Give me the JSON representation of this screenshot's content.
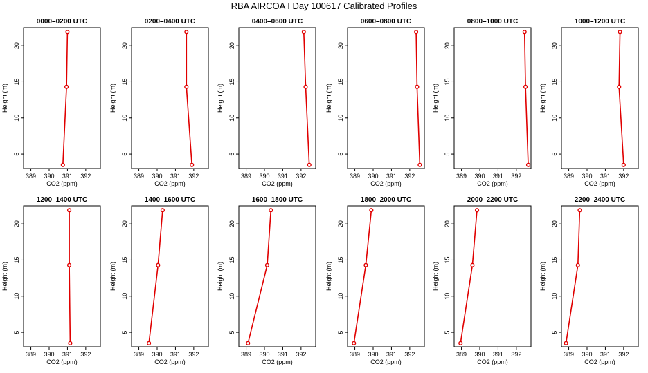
{
  "title": "RBA AIRCOA I  Day 100617  Calibrated Profiles",
  "colors": {
    "profile": "#e00000",
    "axis": "#000000"
  },
  "chart_data": [
    {
      "type": "line",
      "title": "0000–0200 UTC",
      "xlabel": "CO2 (ppm)",
      "ylabel": "Height (m)",
      "xlim": [
        388.6,
        392.8
      ],
      "ylim": [
        3,
        22.5
      ],
      "xticks": [
        389,
        390,
        391,
        392
      ],
      "yticks": [
        5,
        10,
        15,
        20
      ],
      "x": [
        390.75,
        390.95,
        391.0
      ],
      "y": [
        3.5,
        14.3,
        21.9
      ]
    },
    {
      "type": "line",
      "title": "0200–0400 UTC",
      "xlabel": "CO2 (ppm)",
      "ylabel": "Height (m)",
      "xlim": [
        388.6,
        392.8
      ],
      "ylim": [
        3,
        22.5
      ],
      "xticks": [
        389,
        390,
        391,
        392
      ],
      "yticks": [
        5,
        10,
        15,
        20
      ],
      "x": [
        391.9,
        391.6,
        391.6
      ],
      "y": [
        3.5,
        14.3,
        21.9
      ]
    },
    {
      "type": "line",
      "title": "0400–0600 UTC",
      "xlabel": "CO2 (ppm)",
      "ylabel": "Height (m)",
      "xlim": [
        388.6,
        392.8
      ],
      "ylim": [
        3,
        22.5
      ],
      "xticks": [
        389,
        390,
        391,
        392
      ],
      "yticks": [
        5,
        10,
        15,
        20
      ],
      "x": [
        392.45,
        392.25,
        392.15
      ],
      "y": [
        3.5,
        14.3,
        21.9
      ]
    },
    {
      "type": "line",
      "title": "0600–0800 UTC",
      "xlabel": "CO2 (ppm)",
      "ylabel": "Height (m)",
      "xlim": [
        388.6,
        392.8
      ],
      "ylim": [
        3,
        22.5
      ],
      "xticks": [
        389,
        390,
        391,
        392
      ],
      "yticks": [
        5,
        10,
        15,
        20
      ],
      "x": [
        392.55,
        392.4,
        392.35
      ],
      "y": [
        3.5,
        14.3,
        21.9
      ]
    },
    {
      "type": "line",
      "title": "0800–1000 UTC",
      "xlabel": "CO2 (ppm)",
      "ylabel": "Height (m)",
      "xlim": [
        388.6,
        392.8
      ],
      "ylim": [
        3,
        22.5
      ],
      "xticks": [
        389,
        390,
        391,
        392
      ],
      "yticks": [
        5,
        10,
        15,
        20
      ],
      "x": [
        392.65,
        392.5,
        392.45
      ],
      "y": [
        3.5,
        14.3,
        21.9
      ]
    },
    {
      "type": "line",
      "title": "1000–1200 UTC",
      "xlabel": "CO2 (ppm)",
      "ylabel": "Height (m)",
      "xlim": [
        388.6,
        392.8
      ],
      "ylim": [
        3,
        22.5
      ],
      "xticks": [
        389,
        390,
        391,
        392
      ],
      "yticks": [
        5,
        10,
        15,
        20
      ],
      "x": [
        392.0,
        391.75,
        391.8
      ],
      "y": [
        3.5,
        14.3,
        21.9
      ]
    },
    {
      "type": "line",
      "title": "1200–1400 UTC",
      "xlabel": "CO2 (ppm)",
      "ylabel": "Height (m)",
      "xlim": [
        388.6,
        392.8
      ],
      "ylim": [
        3,
        22.5
      ],
      "xticks": [
        389,
        390,
        391,
        392
      ],
      "yticks": [
        5,
        10,
        15,
        20
      ],
      "x": [
        391.15,
        391.1,
        391.1
      ],
      "y": [
        3.5,
        14.3,
        21.9
      ]
    },
    {
      "type": "line",
      "title": "1400–1600 UTC",
      "xlabel": "CO2 (ppm)",
      "ylabel": "Height (m)",
      "xlim": [
        388.6,
        392.8
      ],
      "ylim": [
        3,
        22.5
      ],
      "xticks": [
        389,
        390,
        391,
        392
      ],
      "yticks": [
        5,
        10,
        15,
        20
      ],
      "x": [
        389.55,
        390.05,
        390.3
      ],
      "y": [
        3.5,
        14.3,
        21.9
      ]
    },
    {
      "type": "line",
      "title": "1600–1800 UTC",
      "xlabel": "CO2 (ppm)",
      "ylabel": "Height (m)",
      "xlim": [
        388.6,
        392.8
      ],
      "ylim": [
        3,
        22.5
      ],
      "xticks": [
        389,
        390,
        391,
        392
      ],
      "yticks": [
        5,
        10,
        15,
        20
      ],
      "x": [
        389.1,
        390.15,
        390.35
      ],
      "y": [
        3.5,
        14.3,
        21.9
      ]
    },
    {
      "type": "line",
      "title": "1800–2000 UTC",
      "xlabel": "CO2 (ppm)",
      "ylabel": "Height (m)",
      "xlim": [
        388.6,
        392.8
      ],
      "ylim": [
        3,
        22.5
      ],
      "xticks": [
        389,
        390,
        391,
        392
      ],
      "yticks": [
        5,
        10,
        15,
        20
      ],
      "x": [
        388.95,
        389.6,
        389.9
      ],
      "y": [
        3.5,
        14.3,
        21.9
      ]
    },
    {
      "type": "line",
      "title": "2000–2200 UTC",
      "xlabel": "CO2 (ppm)",
      "ylabel": "Height (m)",
      "xlim": [
        388.6,
        392.8
      ],
      "ylim": [
        3,
        22.5
      ],
      "xticks": [
        389,
        390,
        391,
        392
      ],
      "yticks": [
        5,
        10,
        15,
        20
      ],
      "x": [
        388.95,
        389.6,
        389.85
      ],
      "y": [
        3.5,
        14.3,
        21.9
      ]
    },
    {
      "type": "line",
      "title": "2200–2400 UTC",
      "xlabel": "CO2 (ppm)",
      "ylabel": "Height (m)",
      "xlim": [
        388.6,
        392.8
      ],
      "ylim": [
        3,
        22.5
      ],
      "xticks": [
        389,
        390,
        391,
        392
      ],
      "yticks": [
        5,
        10,
        15,
        20
      ],
      "x": [
        388.85,
        389.5,
        389.6
      ],
      "y": [
        3.5,
        14.3,
        21.9
      ]
    }
  ]
}
